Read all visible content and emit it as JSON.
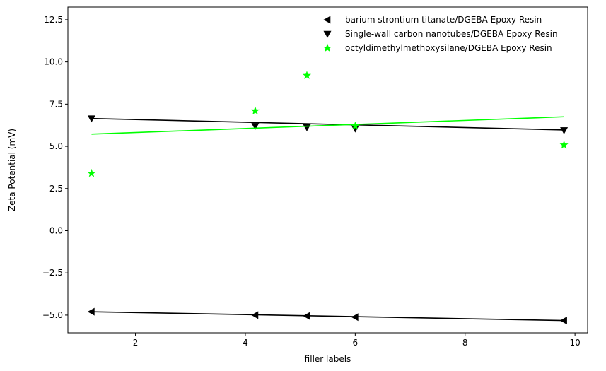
{
  "chart_data": {
    "type": "scatter",
    "title": "",
    "xlabel": "filler labels",
    "ylabel": "Zeta Potential (mV)",
    "xlim": [
      0.77,
      10.23
    ],
    "ylim": [
      -6.05,
      13.25
    ],
    "xticks": [
      2,
      4,
      6,
      8,
      10
    ],
    "yticks": [
      -5.0,
      -2.5,
      0.0,
      2.5,
      5.0,
      7.5,
      10.0,
      12.5
    ],
    "xtick_labels": [
      "2",
      "4",
      "6",
      "8",
      "10"
    ],
    "ytick_labels": [
      "−5.0",
      "−2.5",
      "0.0",
      "2.5",
      "5.0",
      "7.5",
      "10.0",
      "12.5"
    ],
    "grid": false,
    "legend_position": "top-right",
    "series": [
      {
        "name": "barium strontium titanate/DGEBA Epoxy Resin",
        "marker": "triangle-left",
        "color": "#000000",
        "x": [
          1.2,
          4.18,
          5.12,
          6.0,
          9.8
        ],
        "y": [
          -4.8,
          -5.0,
          -5.05,
          -5.12,
          -5.32
        ],
        "fit": {
          "x": [
            1.2,
            9.8
          ],
          "y": [
            -4.8,
            -5.32
          ],
          "color": "#000000"
        }
      },
      {
        "name": "Single-wall carbon nanotubes/DGEBA Epoxy Resin",
        "marker": "triangle-down",
        "color": "#000000",
        "x": [
          1.2,
          4.18,
          5.12,
          6.0,
          9.8
        ],
        "y": [
          6.65,
          6.2,
          6.12,
          6.05,
          5.95
        ],
        "fit": {
          "x": [
            1.2,
            9.8
          ],
          "y": [
            6.65,
            5.97
          ],
          "color": "#000000"
        }
      },
      {
        "name": "octyldimethylmethoxysilane/DGEBA Epoxy Resin",
        "marker": "star",
        "color": "#00ff00",
        "x": [
          1.2,
          4.18,
          5.12,
          6.0,
          9.8
        ],
        "y": [
          3.4,
          7.1,
          9.2,
          6.2,
          5.08
        ],
        "fit": {
          "x": [
            1.2,
            9.8
          ],
          "y": [
            5.72,
            6.75
          ],
          "color": "#00ff00"
        }
      }
    ]
  }
}
